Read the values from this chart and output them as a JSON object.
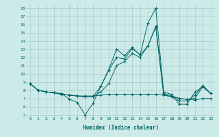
{
  "xlabel": "Humidex (Indice chaleur)",
  "x": [
    0,
    1,
    2,
    3,
    4,
    5,
    6,
    7,
    8,
    9,
    10,
    11,
    12,
    13,
    14,
    15,
    16,
    17,
    18,
    19,
    20,
    21,
    22,
    23
  ],
  "line1": [
    8.8,
    8.0,
    7.8,
    7.7,
    7.6,
    6.9,
    6.5,
    5.0,
    6.4,
    8.5,
    10.5,
    13.0,
    12.2,
    13.2,
    12.3,
    16.2,
    18.0,
    7.8,
    7.5,
    6.3,
    6.3,
    7.8,
    8.4,
    7.6
  ],
  "line2": [
    8.8,
    8.0,
    7.8,
    7.7,
    7.5,
    7.4,
    7.3,
    7.2,
    7.2,
    8.5,
    10.4,
    12.0,
    11.8,
    13.1,
    12.3,
    13.4,
    15.7,
    7.6,
    7.3,
    7.0,
    6.9,
    7.0,
    8.5,
    7.6
  ],
  "line3": [
    8.8,
    8.0,
    7.8,
    7.7,
    7.5,
    7.4,
    7.3,
    7.3,
    7.3,
    7.4,
    7.5,
    7.5,
    7.5,
    7.5,
    7.5,
    7.5,
    7.5,
    7.4,
    7.2,
    7.0,
    6.9,
    6.8,
    7.0,
    7.0
  ],
  "line4": [
    8.8,
    8.0,
    7.8,
    7.7,
    7.5,
    7.4,
    7.3,
    7.2,
    7.2,
    7.8,
    8.8,
    11.0,
    11.5,
    12.5,
    12.0,
    13.4,
    15.8,
    7.5,
    7.2,
    6.7,
    6.7,
    7.4,
    8.6,
    7.6
  ],
  "line_color": "#006666",
  "bg_color": "#cceae8",
  "grid_color": "#aacccc",
  "ylim": [
    5,
    18
  ],
  "yticks": [
    5,
    6,
    7,
    8,
    9,
    10,
    11,
    12,
    13,
    14,
    15,
    16,
    17,
    18
  ],
  "xticks": [
    0,
    1,
    2,
    3,
    4,
    5,
    6,
    7,
    8,
    9,
    10,
    11,
    12,
    13,
    14,
    15,
    16,
    17,
    18,
    19,
    20,
    21,
    22,
    23
  ]
}
